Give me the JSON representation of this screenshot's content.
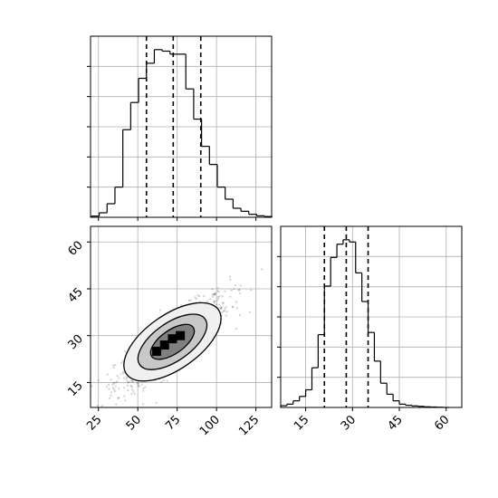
{
  "chart_data": [
    {
      "panel": "histogram-x",
      "type": "bar",
      "style": "step",
      "x": [
        23,
        28,
        33,
        38,
        43,
        48,
        53,
        58,
        63,
        68,
        73,
        78,
        83,
        88,
        93,
        98,
        103,
        108,
        113,
        118,
        123,
        128,
        133
      ],
      "values": [
        0.8,
        3,
        9,
        20,
        58,
        76,
        92,
        102,
        111,
        110,
        108,
        108,
        85,
        65,
        47,
        35,
        20,
        12,
        6,
        4,
        2,
        1,
        0.5
      ],
      "xlim": [
        20,
        135
      ],
      "quantile_lines": [
        55.5,
        72.5,
        90.0
      ],
      "grid": true
    },
    {
      "panel": "scatter-xy",
      "type": "scatter",
      "xlim": [
        20,
        135
      ],
      "ylim": [
        7,
        65
      ],
      "xticks": [
        25,
        50,
        75,
        100,
        125
      ],
      "yticks": [
        15,
        30,
        45,
        60
      ],
      "density": {
        "center": [
          72,
          28
        ],
        "std": [
          18,
          7.5
        ],
        "correlation": 0.85
      },
      "contours": [
        {
          "level": "outer",
          "fill": "#f0f0f0"
        },
        {
          "level": "middle",
          "fill": "#c8c8c8"
        },
        {
          "level": "inner",
          "fill": "#808080"
        }
      ],
      "peak_cells": [
        [
          62,
          25
        ],
        [
          67,
          27
        ],
        [
          72,
          29
        ],
        [
          77,
          30
        ]
      ],
      "grid": true
    },
    {
      "panel": "histogram-y",
      "type": "bar",
      "style": "step",
      "x": [
        8,
        10,
        12,
        14,
        16,
        18,
        20,
        22,
        24,
        26,
        28,
        30,
        32,
        34,
        36,
        38,
        40,
        42,
        44,
        46,
        48,
        50,
        52,
        54,
        56,
        58,
        60
      ],
      "values": [
        0.8,
        1.5,
        3,
        5,
        8,
        18,
        33,
        55,
        68,
        74,
        76,
        75,
        61,
        48,
        34,
        21,
        11,
        6,
        3,
        1.5,
        1,
        0.7,
        0.5,
        0.3,
        0.2,
        0.1,
        0
      ],
      "xlim": [
        7,
        65
      ],
      "xticks": [
        15,
        30,
        45,
        60
      ],
      "quantile_lines": [
        21.0,
        28.0,
        35.0
      ],
      "grid": true
    }
  ]
}
